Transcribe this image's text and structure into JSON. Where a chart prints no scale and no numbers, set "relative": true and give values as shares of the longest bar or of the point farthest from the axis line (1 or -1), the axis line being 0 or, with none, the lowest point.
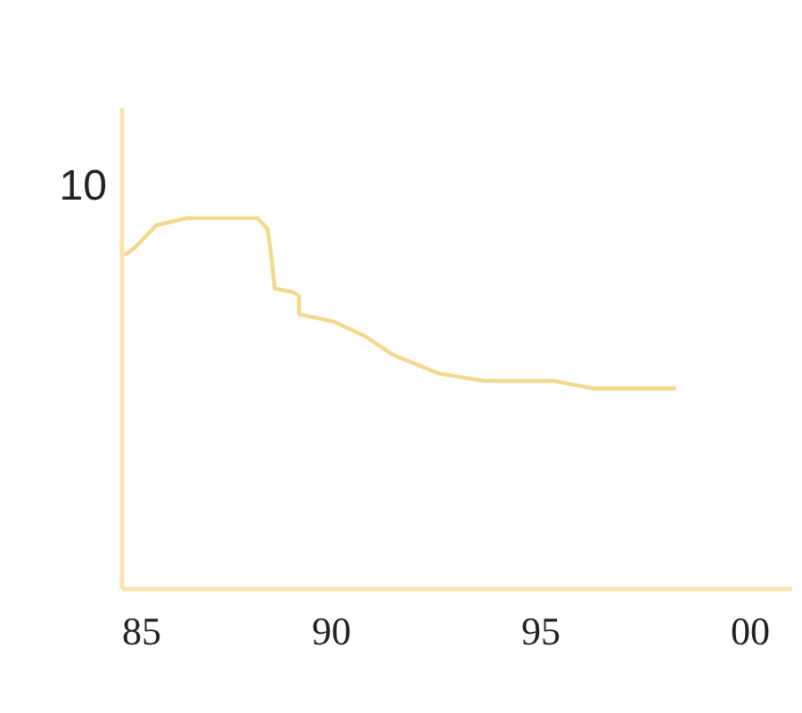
{
  "chart_data": {
    "type": "line",
    "relative": true,
    "x": [
      "1985-02",
      "1985-05",
      "1985-11",
      "1986-08",
      "1987-07",
      "1988-04",
      "1988-07",
      "1988-08",
      "1988-09",
      "1989-02",
      "1989-04",
      "1989-04",
      "1990-02",
      "1990-11",
      "1991-07",
      "1992-08",
      "1993-09",
      "1995-05",
      "1996-04",
      "1997-02",
      "1998-04"
    ],
    "series": [
      {
        "color": "#f3d98c",
        "values": [
          0.9,
          0.92,
          0.98,
          1.0,
          1.0,
          1.0,
          0.97,
          0.9,
          0.81,
          0.8,
          0.79,
          0.74,
          0.72,
          0.68,
          0.63,
          0.58,
          0.56,
          0.56,
          0.54,
          0.54,
          0.54
        ]
      }
    ],
    "xlim": [
      "1985",
      "2001"
    ],
    "xticks": [
      {
        "value": "1985",
        "label": "85"
      },
      {
        "value": "1990",
        "label": "90"
      },
      {
        "value": "1995",
        "label": "95"
      },
      {
        "value": "2000",
        "label": "00"
      }
    ],
    "legend": false,
    "annotations": [
      "10"
    ],
    "grid": false,
    "marker": "none",
    "line_style": "solid"
  }
}
